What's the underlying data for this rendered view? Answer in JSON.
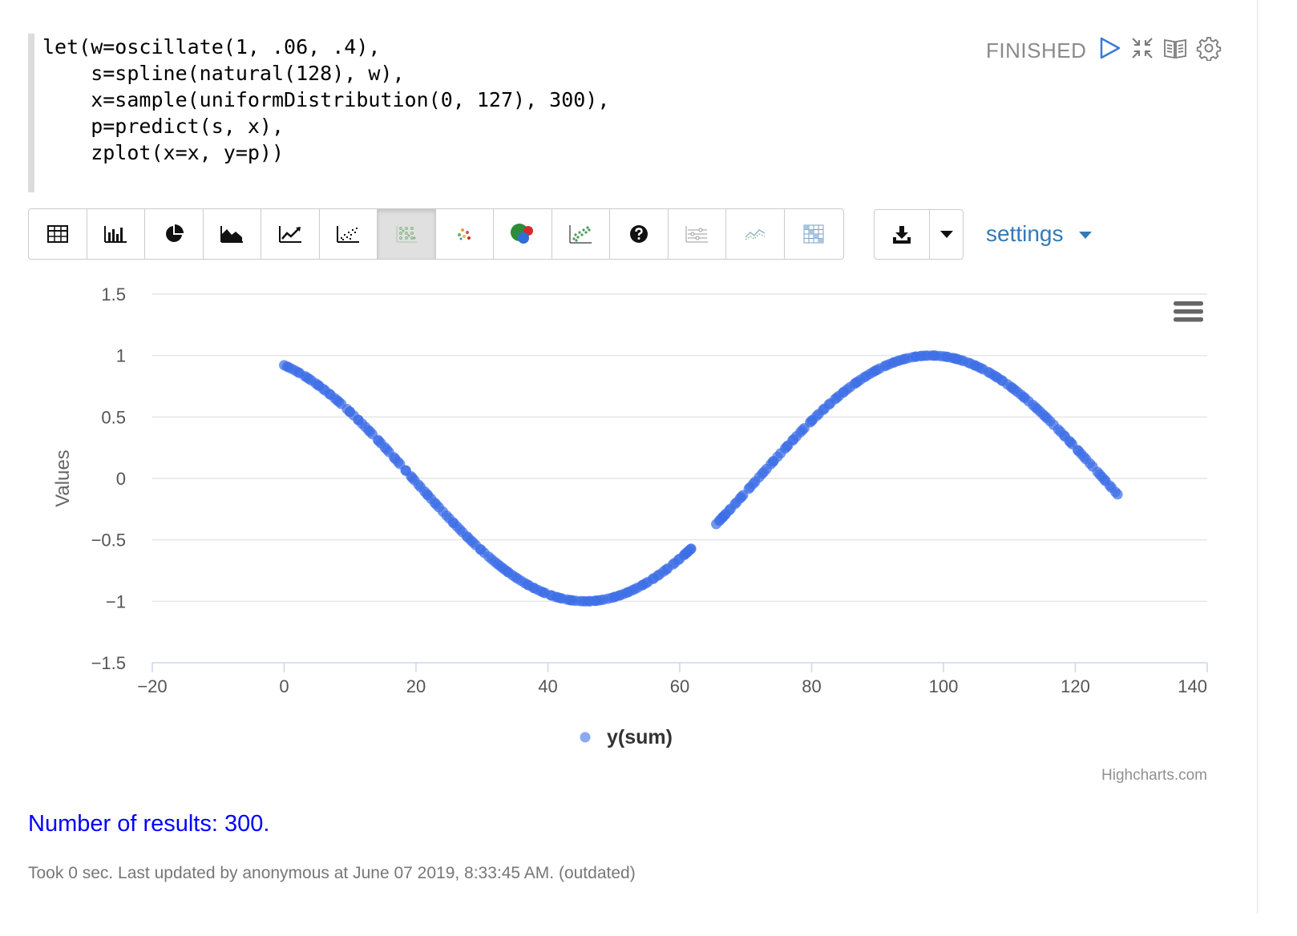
{
  "paragraph": {
    "code_lines": [
      "let(w=oscillate(1, .06, .4),",
      "    s=spline(natural(128), w),",
      "    x=sample(uniformDistribution(0, 127), 300),",
      "    p=predict(s, x),",
      "    zplot(x=x, y=p))"
    ],
    "status": "FINISHED",
    "header_icons": [
      "play-icon",
      "collapse-icon",
      "book-icon",
      "gear-icon"
    ]
  },
  "toolbar": {
    "buttons": [
      {
        "name": "table-icon",
        "active": false
      },
      {
        "name": "bar-chart-icon",
        "active": false
      },
      {
        "name": "pie-chart-icon",
        "active": false
      },
      {
        "name": "area-chart-icon",
        "active": false
      },
      {
        "name": "line-chart-icon",
        "active": false
      },
      {
        "name": "scatter-chart-icon",
        "active": false
      },
      {
        "name": "dot-grid-icon",
        "active": true
      },
      {
        "name": "scatter-colored-icon",
        "active": false
      },
      {
        "name": "bubble-chart-icon",
        "active": false
      },
      {
        "name": "scatter-grid-icon",
        "active": false
      },
      {
        "name": "help-icon",
        "active": false
      },
      {
        "name": "stack-lines-icon",
        "active": false
      },
      {
        "name": "multi-line-icon",
        "active": false
      },
      {
        "name": "heatmap-icon",
        "active": false
      }
    ],
    "download_icon": "download-icon",
    "dropdown_icon": "caret-down-icon",
    "settings_label": "settings"
  },
  "chart_data": {
    "type": "scatter",
    "title": "",
    "xlabel": "",
    "ylabel": "Values",
    "xlim": [
      -20,
      140
    ],
    "ylim": [
      -1.5,
      1.5
    ],
    "x_ticks": [
      "−20",
      "0",
      "20",
      "40",
      "60",
      "80",
      "100",
      "120",
      "140"
    ],
    "y_ticks": [
      "1.5",
      "1",
      "0.5",
      "0",
      "−0.5",
      "−1",
      "−1.5"
    ],
    "grid": true,
    "legend_position": "bottom-center",
    "credits": "Highcharts.com",
    "menu_icon": "hamburger-icon",
    "series": [
      {
        "name": "y(sum)",
        "color": "#3e6fe6",
        "x_range": [
          0,
          126.5
        ],
        "gap": [
          62,
          65.5
        ],
        "sample_count": 300,
        "function": "cos(0.06*x + 0.4)"
      }
    ]
  },
  "results": {
    "count_text": "Number of results: 300.",
    "footer": "Took 0 sec. Last updated by anonymous at June 07 2019, 8:33:45 AM. (outdated)"
  }
}
